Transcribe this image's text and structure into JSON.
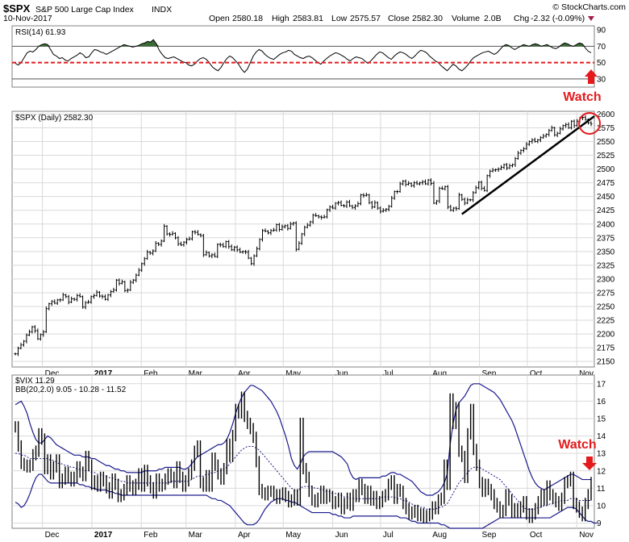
{
  "header": {
    "symbol": "$SPX",
    "name": "S&P 500 Large Cap Index",
    "exchange": "INDX",
    "date": "10-Nov-2017",
    "open_label": "Open",
    "open": "2580.18",
    "high_label": "High",
    "high": "2583.81",
    "low_label": "Low",
    "low": "2575.57",
    "close_label": "Close",
    "close": "2582.30",
    "volume_label": "Volume",
    "volume": "2.0B",
    "chg_label": "Chg",
    "chg": "-2.32 (-0.09%)",
    "source": "© StockCharts.com"
  },
  "colors": {
    "price": "#000000",
    "bb": "#1a1a8c",
    "rsi_fill": "#3a6b34",
    "threshold": "#e41a1c",
    "trend": "#000000",
    "grid": "#d9d9d9",
    "watch": "#e41a1c"
  },
  "annotations": {
    "watch_top": "Watch",
    "watch_bottom": "Watch"
  },
  "chart_data": [
    {
      "type": "line",
      "panel": "rsi",
      "label": "RSI(14) 61.93",
      "yticks": [
        30,
        50,
        70,
        90
      ],
      "ylim": [
        20,
        95
      ],
      "overbought": 70,
      "oversold": 30,
      "threshold": 50,
      "start": "2016-11-14",
      "values": [
        49,
        47,
        50,
        56,
        62,
        64,
        63,
        66,
        70,
        72,
        73,
        72,
        66,
        60,
        58,
        55,
        56,
        53,
        52,
        55,
        57,
        59,
        62,
        60,
        56,
        57,
        62,
        66,
        65,
        63,
        62,
        60,
        62,
        64,
        66,
        68,
        70,
        72,
        71,
        70,
        69,
        70,
        71,
        73,
        74,
        76,
        75,
        78,
        73,
        65,
        60,
        56,
        55,
        56,
        57,
        55,
        53,
        51,
        50,
        47,
        46,
        48,
        52,
        55,
        56,
        54,
        50,
        45,
        42,
        40,
        44,
        50,
        55,
        58,
        56,
        52,
        48,
        42,
        38,
        42,
        50,
        58,
        63,
        66,
        64,
        60,
        57,
        55,
        54,
        57,
        60,
        62,
        63,
        65,
        64,
        60,
        58,
        56,
        55,
        57,
        58,
        56,
        53,
        50,
        48,
        52,
        55,
        58,
        60,
        62,
        61,
        59,
        57,
        54,
        52,
        55,
        57,
        56,
        55,
        52,
        49,
        52,
        56,
        60,
        63,
        62,
        59,
        56,
        54,
        58,
        61,
        63,
        62,
        60,
        57,
        55,
        58,
        62,
        65,
        64,
        62,
        58,
        55,
        52,
        50,
        46,
        43,
        40,
        44,
        48,
        46,
        42,
        40,
        43,
        47,
        52,
        56,
        58,
        60,
        62,
        63,
        64,
        62,
        60,
        62,
        66,
        70,
        72,
        71,
        68,
        66,
        68,
        70,
        72,
        71,
        70,
        72,
        73,
        72,
        70,
        71,
        72,
        70,
        68,
        67,
        69,
        72,
        74,
        73,
        71,
        70,
        72,
        74,
        73,
        68,
        64,
        62
      ]
    },
    {
      "type": "line",
      "panel": "price",
      "label": "$SPX (Daily) 2582.30",
      "yticks": [
        2150,
        2175,
        2200,
        2225,
        2250,
        2275,
        2300,
        2325,
        2350,
        2375,
        2400,
        2425,
        2450,
        2475,
        2500,
        2525,
        2550,
        2575,
        2600
      ],
      "ylim": [
        2140,
        2605
      ],
      "xticks": [
        "Dec",
        "2017",
        "Feb",
        "Mar",
        "Apr",
        "May",
        "Jun",
        "Jul",
        "Aug",
        "Sep",
        "Oct",
        "Nov"
      ],
      "start": "2016-11-14",
      "values": [
        2164,
        2174,
        2180,
        2187,
        2198,
        2204,
        2213,
        2206,
        2191,
        2199,
        2204,
        2246,
        2255,
        2259,
        2256,
        2262,
        2262,
        2271,
        2268,
        2258,
        2264,
        2263,
        2270,
        2268,
        2249,
        2257,
        2258,
        2268,
        2270,
        2276,
        2269,
        2268,
        2263,
        2271,
        2277,
        2280,
        2298,
        2292,
        2295,
        2279,
        2280,
        2294,
        2298,
        2307,
        2316,
        2328,
        2337,
        2349,
        2347,
        2351,
        2365,
        2363,
        2369,
        2396,
        2382,
        2381,
        2383,
        2375,
        2364,
        2362,
        2367,
        2372,
        2373,
        2386,
        2385,
        2381,
        2379,
        2344,
        2348,
        2342,
        2344,
        2341,
        2363,
        2362,
        2359,
        2368,
        2359,
        2353,
        2358,
        2353,
        2349,
        2350,
        2349,
        2338,
        2328,
        2342,
        2355,
        2372,
        2388,
        2387,
        2384,
        2388,
        2389,
        2399,
        2390,
        2395,
        2397,
        2392,
        2400,
        2402,
        2354,
        2365,
        2382,
        2394,
        2398,
        2404,
        2416,
        2415,
        2413,
        2412,
        2413,
        2426,
        2431,
        2429,
        2438,
        2439,
        2434,
        2433,
        2440,
        2433,
        2430,
        2433,
        2437,
        2453,
        2452,
        2453,
        2439,
        2431,
        2439,
        2429,
        2423,
        2425,
        2427,
        2432,
        2447,
        2459,
        2459,
        2473,
        2478,
        2472,
        2474,
        2470,
        2475,
        2473,
        2475,
        2477,
        2473,
        2480,
        2474,
        2438,
        2442,
        2465,
        2464,
        2468,
        2431,
        2425,
        2429,
        2428,
        2453,
        2445,
        2438,
        2444,
        2444,
        2457,
        2466,
        2476,
        2465,
        2461,
        2488,
        2496,
        2498,
        2499,
        2500,
        2503,
        2508,
        2502,
        2506,
        2508,
        2519,
        2529,
        2534,
        2537,
        2545,
        2550,
        2553,
        2550,
        2553,
        2557,
        2560,
        2563,
        2570,
        2575,
        2562,
        2565,
        2573,
        2579,
        2581,
        2575,
        2587,
        2579,
        2587,
        2593,
        2594,
        2590,
        2584,
        2582
      ]
    },
    {
      "type": "line",
      "panel": "vix",
      "label": "$VIX 11.29",
      "bb_label": "BB(20,2.0) 9.05 - 10.28 - 11.52",
      "yticks": [
        9,
        10,
        11,
        12,
        13,
        14,
        15,
        16,
        17
      ],
      "ylim": [
        8.7,
        17.5
      ],
      "xticks": [
        "Dec",
        "2017",
        "Feb",
        "Mar",
        "Apr",
        "May",
        "Jun",
        "Jul",
        "Aug",
        "Sep",
        "Oct",
        "Nov"
      ],
      "start": "2016-11-14",
      "values": [
        14.5,
        13.4,
        12.4,
        12.3,
        12.2,
        12.3,
        12.9,
        13.1,
        14.1,
        13.8,
        12.1,
        12.6,
        11.8,
        12.2,
        12.6,
        11.3,
        11.5,
        11.9,
        11.6,
        11.4,
        11.6,
        12.2,
        11.9,
        11.7,
        12.8,
        12.3,
        11.2,
        11.4,
        11.1,
        11.6,
        11.4,
        11.0,
        10.7,
        11.5,
        11.2,
        10.5,
        10.6,
        10.9,
        11.4,
        11.1,
        10.9,
        11.2,
        11.8,
        11.1,
        12.0,
        11.4,
        11.0,
        10.7,
        11.5,
        11.1,
        11.2,
        11.5,
        11.8,
        11.6,
        11.3,
        12.2,
        11.6,
        11.1,
        11.4,
        11.8,
        12.3,
        13.1,
        13.4,
        11.3,
        11.1,
        11.7,
        11.1,
        12.7,
        12.3,
        11.8,
        11.5,
        12.1,
        13.5,
        12.8,
        14.0,
        15.5,
        15.3,
        16.2,
        15.1,
        14.7,
        14.4,
        13.9,
        12.5,
        10.9,
        10.7,
        10.6,
        10.8,
        10.8,
        10.6,
        10.4,
        10.6,
        10.7,
        10.5,
        10.2,
        10.3,
        10.6,
        10.3,
        14.7,
        12.1,
        11.6,
        10.8,
        10.3,
        10.2,
        10.4,
        10.8,
        10.4,
        10.6,
        10.5,
        10.1,
        10.2,
        10.4,
        9.8,
        10.1,
        10.4,
        10.0,
        10.6,
        10.5,
        11.2,
        10.9,
        10.4,
        10.8,
        10.3,
        10.5,
        10.1,
        10.2,
        10.5,
        10.6,
        11.2,
        11.4,
        10.4,
        10.9,
        10.8,
        10.1,
        9.8,
        9.5,
        9.6,
        9.7,
        9.4,
        9.5,
        9.3,
        9.4,
        9.5,
        9.9,
        9.8,
        10.3,
        10.4,
        12.3,
        11.2,
        16.1,
        14.7,
        15.6,
        13.1,
        12.8,
        11.6,
        14.1,
        15.5,
        13.2,
        12.3,
        11.3,
        10.8,
        11.2,
        10.9,
        10.6,
        10.1,
        9.9,
        9.6,
        9.7,
        10.6,
        10.3,
        9.6,
        9.8,
        9.6,
        9.9,
        10.2,
        9.5,
        9.3,
        9.5,
        9.8,
        10.2,
        10.6,
        10.3,
        11.1,
        10.6,
        10.4,
        10.2,
        10.0,
        10.4,
        11.3,
        11.4,
        11.6,
        10.1,
        9.9,
        9.6,
        9.4,
        10.1,
        10.6,
        11.3
      ],
      "bb_upper": [
        15.8,
        15.9,
        16.0,
        15.7,
        15.3,
        14.7,
        14.2,
        13.8,
        13.6,
        13.6,
        13.8,
        14.0,
        13.9,
        13.7,
        13.5,
        13.4,
        13.3,
        13.2,
        13.1,
        13.0,
        12.9,
        12.9,
        12.9,
        12.8,
        12.8,
        12.8,
        12.7,
        12.7,
        12.6,
        12.5,
        12.4,
        12.3,
        12.3,
        12.2,
        12.1,
        12.1,
        12.0,
        12.0,
        11.9,
        11.9,
        11.9,
        11.9,
        11.9,
        11.9,
        12.0,
        12.0,
        12.0,
        12.0,
        12.0,
        12.1,
        12.1,
        12.2,
        12.2,
        12.2,
        12.2,
        12.2,
        12.2,
        12.1,
        12.1,
        12.2,
        12.4,
        12.6,
        12.8,
        12.9,
        13.0,
        13.1,
        13.2,
        13.3,
        13.4,
        13.5,
        13.5,
        13.6,
        13.8,
        14.2,
        14.7,
        15.3,
        15.8,
        16.2,
        16.5,
        16.7,
        16.9,
        16.9,
        16.8,
        16.7,
        16.6,
        16.4,
        16.2,
        16.0,
        15.7,
        15.4,
        15.0,
        14.5,
        14.0,
        13.4,
        12.7,
        12.3,
        12.1,
        12.4,
        12.8,
        13.0,
        13.1,
        13.1,
        13.1,
        13.1,
        13.1,
        13.1,
        13.1,
        13.1,
        13.1,
        13.0,
        12.9,
        12.8,
        12.6,
        12.4,
        11.9,
        11.6,
        11.5,
        11.6,
        11.6,
        11.6,
        11.6,
        11.6,
        11.6,
        11.6,
        11.6,
        11.7,
        11.7,
        11.8,
        11.9,
        11.9,
        11.8,
        11.8,
        11.7,
        11.6,
        11.5,
        11.4,
        11.2,
        11.0,
        10.8,
        10.7,
        10.6,
        10.6,
        10.6,
        10.7,
        10.8,
        11.0,
        11.3,
        11.8,
        13.5,
        14.7,
        15.5,
        15.9,
        16.1,
        16.3,
        16.6,
        16.9,
        17.0,
        17.0,
        17.0,
        16.9,
        16.8,
        16.7,
        16.6,
        16.5,
        16.3,
        16.1,
        15.8,
        15.5,
        15.2,
        14.9,
        14.5,
        14.0,
        13.5,
        13.0,
        12.5,
        12.0,
        11.6,
        11.3,
        11.1,
        11.0,
        10.9,
        11.0,
        11.1,
        11.2,
        11.3,
        11.4,
        11.5,
        11.6,
        11.7,
        11.8,
        11.8,
        11.7,
        11.6,
        11.5,
        11.5,
        11.5,
        11.5
      ],
      "bb_mid": [
        13.0,
        13.0,
        12.9,
        12.9,
        12.8,
        12.7,
        12.7,
        12.7,
        12.7,
        12.7,
        12.7,
        12.7,
        12.6,
        12.6,
        12.5,
        12.4,
        12.4,
        12.3,
        12.3,
        12.2,
        12.2,
        12.1,
        12.1,
        12.1,
        12.0,
        12.0,
        11.9,
        11.9,
        11.8,
        11.8,
        11.7,
        11.7,
        11.6,
        11.6,
        11.5,
        11.5,
        11.4,
        11.4,
        11.3,
        11.3,
        11.3,
        11.3,
        11.3,
        11.3,
        11.3,
        11.3,
        11.3,
        11.3,
        11.3,
        11.3,
        11.3,
        11.3,
        11.3,
        11.4,
        11.4,
        11.4,
        11.4,
        11.4,
        11.4,
        11.4,
        11.5,
        11.6,
        11.7,
        11.7,
        11.7,
        11.8,
        11.8,
        11.9,
        11.9,
        12.0,
        12.0,
        12.1,
        12.2,
        12.4,
        12.6,
        12.8,
        13.0,
        13.2,
        13.3,
        13.4,
        13.4,
        13.4,
        13.3,
        13.2,
        13.0,
        12.8,
        12.6,
        12.4,
        12.2,
        12.0,
        11.8,
        11.6,
        11.4,
        11.2,
        11.0,
        10.9,
        10.8,
        11.0,
        11.1,
        11.1,
        11.1,
        11.1,
        11.0,
        11.0,
        10.9,
        10.9,
        10.8,
        10.8,
        10.7,
        10.7,
        10.6,
        10.6,
        10.5,
        10.5,
        10.4,
        10.4,
        10.4,
        10.4,
        10.4,
        10.4,
        10.4,
        10.4,
        10.4,
        10.4,
        10.4,
        10.5,
        10.5,
        10.5,
        10.5,
        10.5,
        10.4,
        10.4,
        10.3,
        10.3,
        10.2,
        10.1,
        10.0,
        10.0,
        9.9,
        9.9,
        9.8,
        9.8,
        9.8,
        9.8,
        9.9,
        9.9,
        10.0,
        10.1,
        10.4,
        10.7,
        11.0,
        11.3,
        11.5,
        11.7,
        11.9,
        12.1,
        12.2,
        12.2,
        12.2,
        12.1,
        12.0,
        11.9,
        11.8,
        11.7,
        11.6,
        11.5,
        11.3,
        11.1,
        10.9,
        10.7,
        10.5,
        10.3,
        10.1,
        9.9,
        9.8,
        9.8,
        9.8,
        9.8,
        9.9,
        9.9,
        10.0,
        10.0,
        10.1,
        10.1,
        10.2,
        10.2,
        10.3,
        10.3,
        10.3,
        10.4,
        10.4,
        10.4,
        10.3,
        10.3,
        10.3,
        10.3,
        10.3
      ],
      "bb_lower": [
        10.2,
        10.1,
        9.9,
        10.0,
        10.3,
        10.7,
        11.2,
        11.6,
        11.8,
        11.8,
        11.6,
        11.4,
        11.3,
        11.3,
        11.3,
        11.3,
        11.3,
        11.3,
        11.3,
        11.3,
        11.3,
        11.3,
        11.2,
        11.2,
        11.1,
        11.1,
        11.0,
        11.0,
        10.9,
        10.9,
        10.9,
        10.9,
        10.8,
        10.8,
        10.7,
        10.7,
        10.6,
        10.6,
        10.6,
        10.6,
        10.6,
        10.6,
        10.6,
        10.6,
        10.6,
        10.6,
        10.6,
        10.6,
        10.6,
        10.6,
        10.6,
        10.6,
        10.6,
        10.6,
        10.6,
        10.6,
        10.6,
        10.6,
        10.6,
        10.6,
        10.6,
        10.6,
        10.6,
        10.6,
        10.6,
        10.6,
        10.5,
        10.4,
        10.4,
        10.3,
        10.3,
        10.2,
        10.1,
        10.0,
        9.8,
        9.6,
        9.4,
        9.2,
        9.0,
        8.9,
        8.9,
        8.9,
        9.0,
        9.2,
        9.5,
        9.8,
        10.0,
        10.2,
        10.3,
        10.4,
        10.4,
        10.4,
        10.3,
        10.3,
        10.2,
        10.2,
        10.1,
        10.0,
        9.9,
        9.8,
        9.7,
        9.6,
        9.6,
        9.6,
        9.6,
        9.6,
        9.6,
        9.6,
        9.5,
        9.5,
        9.4,
        9.4,
        9.3,
        9.3,
        9.3,
        9.4,
        9.4,
        9.4,
        9.4,
        9.4,
        9.4,
        9.4,
        9.4,
        9.4,
        9.4,
        9.4,
        9.4,
        9.4,
        9.4,
        9.4,
        9.4,
        9.3,
        9.3,
        9.3,
        9.2,
        9.1,
        9.1,
        9.0,
        9.0,
        9.0,
        9.0,
        9.0,
        9.0,
        9.0,
        9.0,
        8.9,
        8.9,
        8.8,
        8.7,
        8.7,
        8.7,
        8.7,
        8.7,
        8.7,
        8.7,
        8.7,
        8.7,
        8.7,
        8.7,
        8.7,
        8.8,
        8.9,
        9.0,
        9.1,
        9.2,
        9.3,
        9.3,
        9.3,
        9.3,
        9.3,
        9.3,
        9.3,
        9.3,
        9.3,
        9.3,
        9.3,
        9.3,
        9.3,
        9.3,
        9.3,
        9.3,
        9.3,
        9.3,
        9.4,
        9.5,
        9.6,
        9.7,
        9.8,
        9.9,
        9.9,
        9.9,
        9.8,
        9.6,
        9.4,
        9.2,
        9.1,
        9.1,
        9.0,
        9.0
      ]
    }
  ]
}
